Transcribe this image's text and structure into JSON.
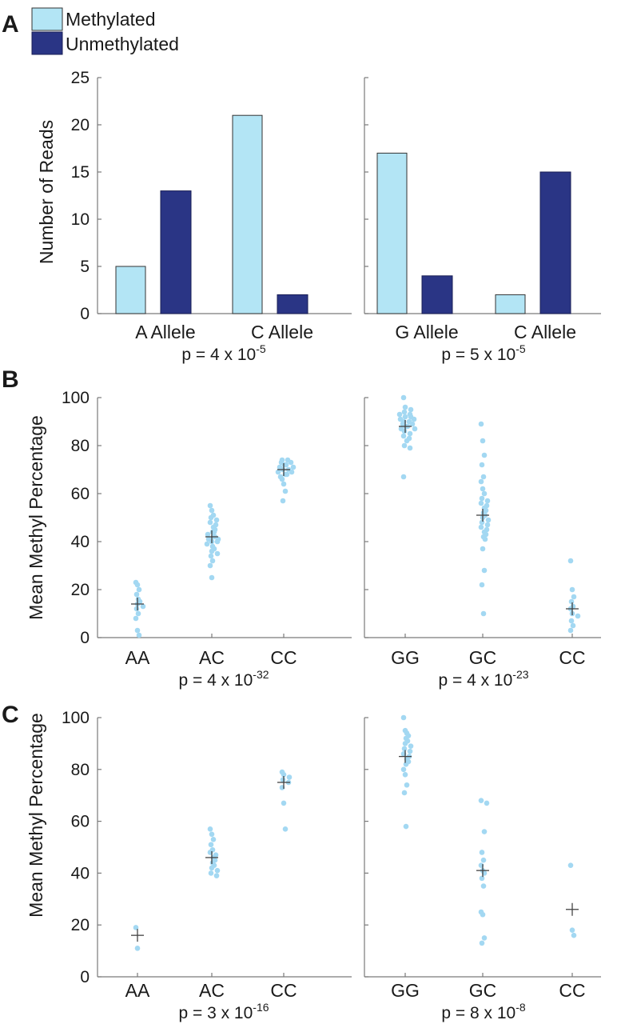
{
  "legend": {
    "items": [
      {
        "label": "Methylated",
        "color": "#b3e5f5"
      },
      {
        "label": "Unmethylated",
        "color": "#2a3585"
      }
    ]
  },
  "colors": {
    "methylated": "#b3e5f5",
    "unmethylated": "#2a3585",
    "point": "#a3d8f2",
    "mean_marker": "#444444",
    "axis": "#7a7a7a"
  },
  "panels": [
    {
      "letter": "A",
      "ylabel": "Number of Reads"
    },
    {
      "letter": "B",
      "ylabel": "Mean Methyl Percentage"
    },
    {
      "letter": "C",
      "ylabel": "Mean Methyl Percentage"
    }
  ],
  "chart_data": [
    {
      "type": "bar",
      "panel": "A",
      "categories": [
        "A Allele",
        "C Allele"
      ],
      "series": [
        {
          "name": "Methylated",
          "values": [
            5,
            21
          ]
        },
        {
          "name": "Unmethylated",
          "values": [
            13,
            2
          ]
        }
      ],
      "ylabel": "Number of Reads",
      "ylim": [
        0,
        25
      ],
      "yticks": [
        0,
        5,
        10,
        15,
        20,
        25
      ],
      "pvalue": {
        "prefix": "p = 4 x 10",
        "exponent": "-5"
      }
    },
    {
      "type": "bar",
      "panel": "A",
      "categories": [
        "G Allele",
        "C Allele"
      ],
      "series": [
        {
          "name": "Methylated",
          "values": [
            17,
            2
          ]
        },
        {
          "name": "Unmethylated",
          "values": [
            4,
            15
          ]
        }
      ],
      "ylim": [
        0,
        25
      ],
      "yticks": [
        0,
        5,
        10,
        15,
        20,
        25
      ],
      "pvalue": {
        "prefix": "p = 5 x 10",
        "exponent": "-5"
      }
    },
    {
      "type": "scatter",
      "panel": "B",
      "categories": [
        "AA",
        "AC",
        "CC"
      ],
      "groups": [
        {
          "category": "AA",
          "mean": 14,
          "values": [
            23,
            22,
            20,
            18,
            16,
            15,
            14,
            13,
            12,
            10,
            8,
            3,
            1
          ]
        },
        {
          "category": "AC",
          "mean": 42,
          "values": [
            55,
            53,
            51,
            50,
            49,
            48,
            47,
            46,
            45,
            44,
            44,
            43,
            42,
            42,
            41,
            41,
            40,
            40,
            39,
            38,
            37,
            36,
            35,
            34,
            32,
            30,
            25
          ]
        },
        {
          "category": "CC",
          "mean": 70,
          "values": [
            74,
            74,
            73,
            73,
            72,
            72,
            71,
            71,
            70,
            70,
            69,
            69,
            68,
            68,
            67,
            66,
            64,
            61,
            57
          ]
        }
      ],
      "ylabel": "Mean Methyl Percentage",
      "ylim": [
        0,
        100
      ],
      "yticks": [
        0,
        20,
        40,
        60,
        80,
        100
      ],
      "pvalue": {
        "prefix": "p = 4 x 10",
        "exponent": "-32"
      }
    },
    {
      "type": "scatter",
      "panel": "B",
      "categories": [
        "GG",
        "GC",
        "CC"
      ],
      "groups": [
        {
          "category": "GG",
          "mean": 88,
          "values": [
            100,
            96,
            95,
            94,
            93,
            93,
            92,
            92,
            91,
            91,
            90,
            90,
            89,
            89,
            88,
            88,
            87,
            87,
            86,
            85,
            84,
            83,
            82,
            80,
            79,
            67
          ]
        },
        {
          "category": "GC",
          "mean": 51,
          "values": [
            89,
            82,
            76,
            72,
            67,
            65,
            62,
            60,
            58,
            57,
            56,
            55,
            54,
            53,
            52,
            51,
            50,
            49,
            48,
            47,
            46,
            45,
            44,
            43,
            42,
            41,
            37,
            28,
            22,
            10
          ]
        },
        {
          "category": "CC",
          "mean": 12,
          "values": [
            32,
            20,
            17,
            15,
            13,
            12,
            10,
            9,
            7,
            5,
            3
          ]
        }
      ],
      "ylim": [
        0,
        100
      ],
      "yticks": [
        0,
        20,
        40,
        60,
        80,
        100
      ],
      "pvalue": {
        "prefix": "p = 4 x 10",
        "exponent": "-23"
      }
    },
    {
      "type": "scatter",
      "panel": "C",
      "categories": [
        "AA",
        "AC",
        "CC"
      ],
      "groups": [
        {
          "category": "AA",
          "mean": 16,
          "values": [
            19,
            11
          ]
        },
        {
          "category": "AC",
          "mean": 46,
          "values": [
            57,
            55,
            53,
            51,
            49,
            48,
            47,
            46,
            45,
            44,
            43,
            42,
            41,
            40,
            39
          ]
        },
        {
          "category": "CC",
          "mean": 75,
          "values": [
            79,
            78,
            77,
            76,
            75,
            73,
            67,
            57
          ]
        }
      ],
      "ylabel": "Mean Methyl Percentage",
      "ylim": [
        0,
        100
      ],
      "yticks": [
        0,
        20,
        40,
        60,
        80,
        100
      ],
      "pvalue": {
        "prefix": "p = 3 x 10",
        "exponent": "-16"
      }
    },
    {
      "type": "scatter",
      "panel": "C",
      "categories": [
        "GG",
        "GC",
        "CC"
      ],
      "groups": [
        {
          "category": "GG",
          "mean": 85,
          "values": [
            100,
            95,
            94,
            93,
            92,
            91,
            90,
            89,
            88,
            87,
            86,
            85,
            84,
            83,
            82,
            80,
            78,
            74,
            71,
            58
          ]
        },
        {
          "category": "GC",
          "mean": 41,
          "values": [
            68,
            67,
            56,
            48,
            45,
            43,
            41,
            40,
            38,
            35,
            25,
            24,
            15,
            13
          ]
        },
        {
          "category": "CC",
          "mean": 26,
          "values": [
            43,
            18,
            16
          ]
        }
      ],
      "ylim": [
        0,
        100
      ],
      "yticks": [
        0,
        20,
        40,
        60,
        80,
        100
      ],
      "pvalue": {
        "prefix": "p = 8 x 10",
        "exponent": "-8"
      }
    }
  ]
}
